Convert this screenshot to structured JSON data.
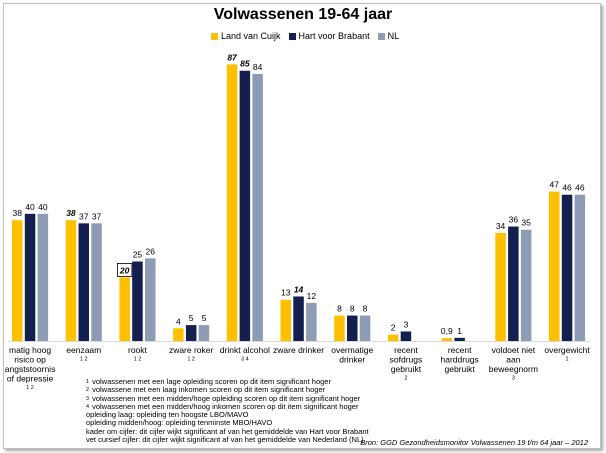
{
  "title": "Volwassenen 19-64 jaar",
  "legend": [
    {
      "name": "Land van Cuijk",
      "color": "#FFC000"
    },
    {
      "name": "Hart voor Brabant",
      "color": "#141E4F"
    },
    {
      "name": "NL",
      "color": "#8E9BB4"
    }
  ],
  "chart_data": {
    "type": "bar",
    "title": "Volwassenen 19-64 jaar",
    "xlabel": "",
    "ylabel": "",
    "ylim": [
      0,
      100
    ],
    "grid": false,
    "legend_position": "top-center",
    "categories": [
      {
        "lines": [
          "matig hoog",
          "risico op",
          "angststoornis",
          "of depressie"
        ],
        "sup": "1 2"
      },
      {
        "lines": [
          "eenzaam"
        ],
        "sup": "1 2"
      },
      {
        "lines": [
          "rookt"
        ],
        "sup": "1 2"
      },
      {
        "lines": [
          "zware roker"
        ],
        "sup": "1 2"
      },
      {
        "lines": [
          "drinkt alcohol"
        ],
        "sup": "3 4"
      },
      {
        "lines": [
          "zware drinker"
        ],
        "sup": ""
      },
      {
        "lines": [
          "overmatige",
          "drinker"
        ],
        "sup": ""
      },
      {
        "lines": [
          "recent",
          "sofdrugs",
          "gebruikt"
        ],
        "sup": "2"
      },
      {
        "lines": [
          "recent",
          "harddrugs",
          "gebruikt"
        ],
        "sup": ""
      },
      {
        "lines": [
          "voldoet niet",
          "aan",
          "beweegnorm"
        ],
        "sup": "3"
      },
      {
        "lines": [
          "overgewicht"
        ],
        "sup": "1"
      }
    ],
    "series": [
      {
        "name": "Land van Cuijk",
        "color": "#FFC000",
        "values": [
          38,
          38,
          20,
          4,
          87,
          13,
          8,
          2,
          0.9,
          34,
          47
        ],
        "labels": [
          "38",
          "38",
          "20",
          "4",
          "87",
          "13",
          "8",
          "2",
          "0,9",
          "34",
          "47"
        ],
        "italic": [
          false,
          true,
          true,
          false,
          true,
          false,
          false,
          false,
          false,
          false,
          false
        ],
        "boxed": [
          false,
          false,
          true,
          false,
          false,
          false,
          false,
          false,
          false,
          false,
          false
        ]
      },
      {
        "name": "Hart voor Brabant",
        "color": "#141E4F",
        "values": [
          40,
          37,
          25,
          5,
          85,
          14,
          8,
          3,
          1,
          36,
          46
        ],
        "labels": [
          "40",
          "37",
          "25",
          "5",
          "85",
          "14",
          "8",
          "3",
          "1",
          "36",
          "46"
        ],
        "italic": [
          false,
          false,
          false,
          false,
          true,
          true,
          false,
          false,
          false,
          false,
          false
        ],
        "boxed": [
          false,
          false,
          false,
          false,
          false,
          false,
          false,
          false,
          false,
          false,
          false
        ]
      },
      {
        "name": "NL",
        "color": "#8E9BB4",
        "values": [
          40,
          37,
          26,
          5,
          84,
          12,
          8,
          null,
          null,
          35,
          46
        ],
        "labels": [
          "40",
          "37",
          "26",
          "5",
          "84",
          "12",
          "8",
          "",
          "",
          "35",
          "46"
        ],
        "italic": [
          false,
          false,
          false,
          false,
          false,
          false,
          false,
          false,
          false,
          false,
          false
        ],
        "boxed": [
          false,
          false,
          false,
          false,
          false,
          false,
          false,
          false,
          false,
          false,
          false
        ]
      }
    ]
  },
  "footnotes": [
    {
      "sup": "1",
      "text": "volwassenen met een lage opleiding scoren op dit item significant hoger"
    },
    {
      "sup": "2",
      "text": "volwassene met een laag inkomen scoren op dit item significant hoger"
    },
    {
      "sup": "3",
      "text": "volwassenen met een midden/hoge opleiding scoren op dit item significant hoger"
    },
    {
      "sup": "4",
      "text": "volwassenen met een midden/hoog inkomen scoren op dit item significant hoger"
    },
    {
      "sup": "",
      "text": "opleiding laag: opleiding ten hoogste LBO/MAVO"
    },
    {
      "sup": "",
      "text": "opleiding midden/hoog: opleiding tenminste MBO/HAVO"
    },
    {
      "sup": "",
      "text": "kader om cijfer: dit cijfer wijkt significant af van het gemiddelde van Hart voor Brabant"
    },
    {
      "sup": "",
      "text": "vet cursief cijfer: dit cijfer wijkt significant af van het gemiddelde van Nederland (NL)"
    }
  ],
  "source": "Bron: GGD Gezondheidsmonitor Volwassenen 19 t/m 64 jaar – 2012"
}
